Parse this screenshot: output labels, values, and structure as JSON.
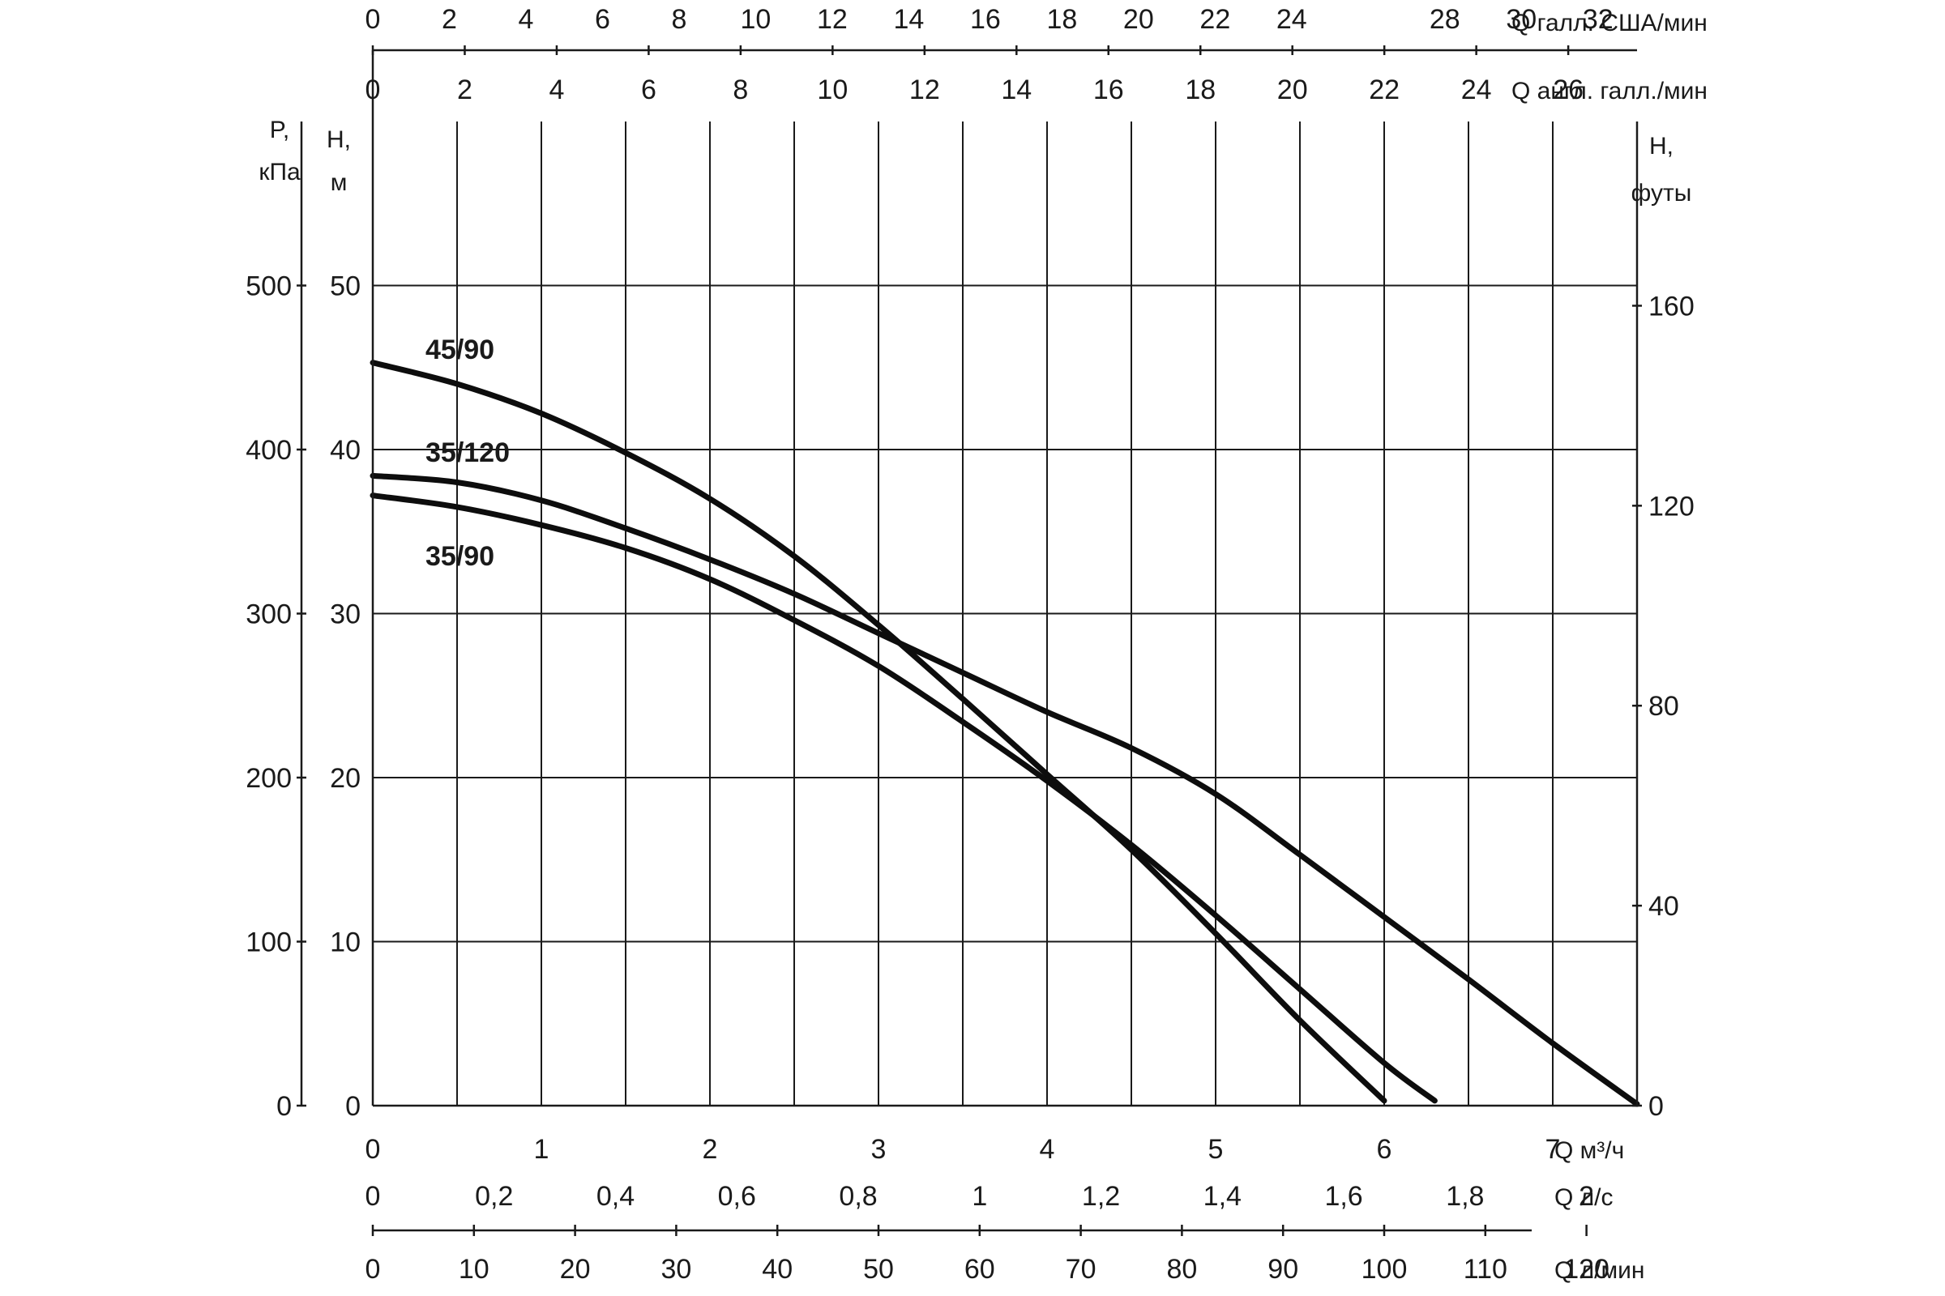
{
  "chart_data": {
    "type": "line",
    "x_axis": {
      "label": "Q м³/ч",
      "ticks": [
        0,
        1,
        2,
        3,
        4,
        5,
        6,
        7
      ],
      "range": [
        0,
        7.5
      ],
      "grid_step": 0.5
    },
    "y_axis": {
      "label_line1": "H,",
      "label_line2": "м",
      "ticks": [
        0,
        10,
        20,
        30,
        40,
        50
      ],
      "range": [
        0,
        60
      ],
      "grid_step": 10
    },
    "y_axis_left_pressure": {
      "label_line1": "P,",
      "label_line2": "кПа",
      "ticks": [
        0,
        100,
        200,
        300,
        400,
        500
      ]
    },
    "y_axis_right_feet": {
      "label_line1": "H,",
      "label_line2": "футы",
      "ticks": [
        0,
        40,
        80,
        120,
        160
      ]
    },
    "top_axis_us_gal": {
      "label": "Q галл. США/мин",
      "ticks": [
        0,
        2,
        4,
        6,
        8,
        10,
        12,
        14,
        16,
        18,
        20,
        22,
        24,
        28,
        30,
        32
      ]
    },
    "top_axis_uk_gal": {
      "label": "Q англ. галл./мин",
      "ticks": [
        0,
        2,
        4,
        6,
        8,
        10,
        12,
        14,
        16,
        18,
        20,
        22,
        24,
        26
      ]
    },
    "bottom_axis_ls": {
      "label": "Q л/с",
      "ticks": [
        "0",
        "0,2",
        "0,4",
        "0,6",
        "0,8",
        "1",
        "1,2",
        "1,4",
        "1,6",
        "1,8",
        "2"
      ]
    },
    "bottom_axis_lmin": {
      "label": "Q л/мин",
      "ticks": [
        0,
        10,
        20,
        30,
        40,
        50,
        60,
        70,
        80,
        90,
        100,
        110,
        120
      ]
    },
    "series": [
      {
        "name": "45/90",
        "points": [
          [
            0,
            45.3
          ],
          [
            0.5,
            44
          ],
          [
            1,
            42.2
          ],
          [
            1.5,
            39.8
          ],
          [
            2,
            37
          ],
          [
            2.5,
            33.5
          ],
          [
            3,
            29.3
          ],
          [
            3.5,
            24.8
          ],
          [
            4,
            20.2
          ],
          [
            4.5,
            15.6
          ],
          [
            5,
            10.5
          ],
          [
            5.5,
            5.2
          ],
          [
            6,
            0.3
          ]
        ]
      },
      {
        "name": "35/120",
        "points": [
          [
            0,
            38.4
          ],
          [
            0.5,
            38
          ],
          [
            1,
            36.9
          ],
          [
            1.5,
            35.2
          ],
          [
            2,
            33.3
          ],
          [
            2.5,
            31.2
          ],
          [
            3,
            28.8
          ],
          [
            3.5,
            26.4
          ],
          [
            4,
            24
          ],
          [
            4.5,
            21.8
          ],
          [
            5,
            19
          ],
          [
            5.5,
            15.3
          ],
          [
            6,
            11.5
          ],
          [
            6.5,
            7.7
          ],
          [
            7,
            3.8
          ],
          [
            7.5,
            0.1
          ]
        ]
      },
      {
        "name": "35/90",
        "points": [
          [
            0,
            37.2
          ],
          [
            0.5,
            36.5
          ],
          [
            1,
            35.4
          ],
          [
            1.5,
            34
          ],
          [
            2,
            32.1
          ],
          [
            2.5,
            29.6
          ],
          [
            3,
            26.8
          ],
          [
            3.5,
            23.4
          ],
          [
            4,
            19.8
          ],
          [
            4.5,
            15.9
          ],
          [
            5,
            11.6
          ],
          [
            5.5,
            7.1
          ],
          [
            6,
            2.6
          ],
          [
            6.3,
            0.3
          ]
        ]
      }
    ]
  }
}
